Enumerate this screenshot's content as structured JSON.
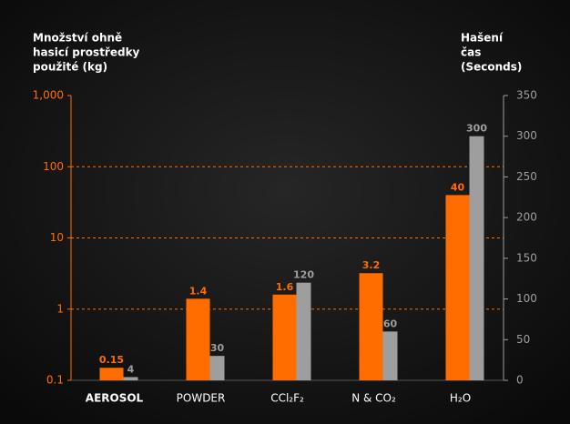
{
  "chart_data": {
    "type": "bar",
    "ylabel": [
      "Množství ohně",
      "hasicí prostředky",
      "použité (kg)"
    ],
    "y2label": [
      "Hašení",
      "čas",
      "(Seconds)"
    ],
    "categories": [
      "AEROSOL",
      "POWDER",
      "CCl₂F₂",
      "N & CO₂",
      "H₂O"
    ],
    "series": [
      {
        "color": "#ff6d00",
        "values": [
          0.15,
          1.4,
          1.6,
          3.2,
          40
        ]
      },
      {
        "color": "#9e9e9e",
        "values": [
          4,
          30,
          120,
          60,
          300
        ],
        "axis": "y2"
      }
    ],
    "ylim": [
      0.1,
      1000
    ],
    "yticks": [
      0.1,
      1,
      10,
      100,
      {
        "value": 1000,
        "label": "1,000"
      }
    ],
    "yscale": "log",
    "y2lim": [
      0,
      350
    ],
    "y2ticks": [
      0,
      50,
      100,
      150,
      200,
      250,
      300,
      350
    ],
    "grid": true
  }
}
